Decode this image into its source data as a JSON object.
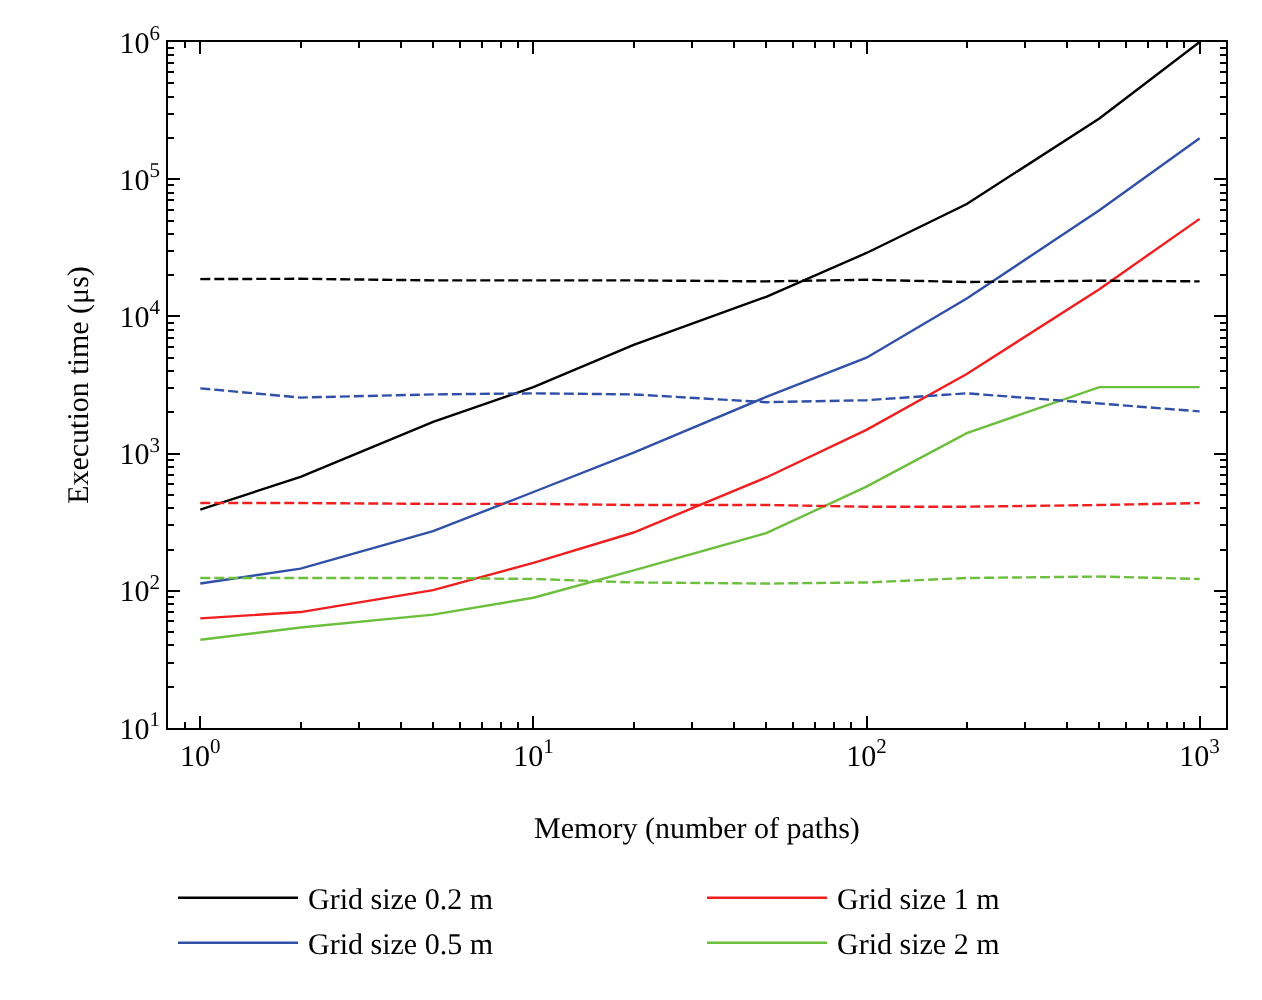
{
  "chart_data": {
    "type": "line",
    "xlabel": "Memory (number of paths)",
    "ylabel": "Execution time (μs)",
    "log": "xy",
    "grid": false,
    "legend": "bottom",
    "line_style": "solid",
    "marker": "none",
    "x": [
      1,
      2,
      5,
      10,
      20,
      50,
      100,
      200,
      500,
      1000
    ],
    "xlim": [
      0.8,
      1200
    ],
    "xticks": [
      {
        "value": 1,
        "label": "10$^{0}$"
      },
      {
        "value": 10,
        "label": "10$^{1}$"
      },
      {
        "value": 100,
        "label": "10$^{2}$"
      },
      {
        "value": 1000,
        "label": "10$^{3}$"
      }
    ],
    "ylim": [
      10,
      1000000
    ],
    "yticks": [
      {
        "value": 10,
        "label": "10$^{1}$"
      },
      {
        "value": 100,
        "label": "10$^{2}$"
      },
      {
        "value": 1000,
        "label": "10$^{3}$"
      },
      {
        "value": 10000,
        "label": "10$^{4}$"
      },
      {
        "value": 100000,
        "label": "10$^{5}$"
      },
      {
        "value": 1000000,
        "label": "10$^{6}$"
      }
    ],
    "series": [
      {
        "name": "Grid size 0.2 m",
        "color": "#000000",
        "values": [
          391,
          676,
          1700,
          3050,
          6200,
          13900,
          29000,
          66000,
          277000,
          1000000
        ]
      },
      {
        "name": "Grid size 0.5 m",
        "color": "#3050a8",
        "values": [
          113,
          145,
          272,
          525,
          1016,
          2590,
          5000,
          13500,
          59300,
          199000
        ]
      },
      {
        "name": "Grid size 1 m",
        "color": "#f01e1e",
        "values": [
          63,
          70,
          101,
          160,
          266,
          670,
          1490,
          3800,
          15800,
          51400
        ]
      },
      {
        "name": "Grid size 2 m",
        "color": "#6cbf3c",
        "values": [
          44,
          54,
          67,
          89,
          141,
          263,
          574,
          1410,
          3050,
          3050
        ]
      },
      {
        "color": "#000000",
        "line_style": "dashed",
        "values": [
          18700,
          18800,
          18300,
          18300,
          18300,
          18000,
          18500,
          17800,
          18200,
          18000
        ]
      },
      {
        "color": "#3050a8",
        "line_style": "dashed",
        "values": [
          2990,
          2560,
          2700,
          2750,
          2700,
          2370,
          2450,
          2750,
          2320,
          2030
        ]
      },
      {
        "color": "#f01e1e",
        "line_style": "dashed",
        "values": [
          436,
          436,
          430,
          430,
          422,
          422,
          410,
          410,
          422,
          436
        ]
      },
      {
        "color": "#6cbf3c",
        "line_style": "dashed",
        "values": [
          124,
          124,
          124,
          122,
          115,
          113,
          115,
          124,
          127,
          122
        ]
      }
    ]
  }
}
